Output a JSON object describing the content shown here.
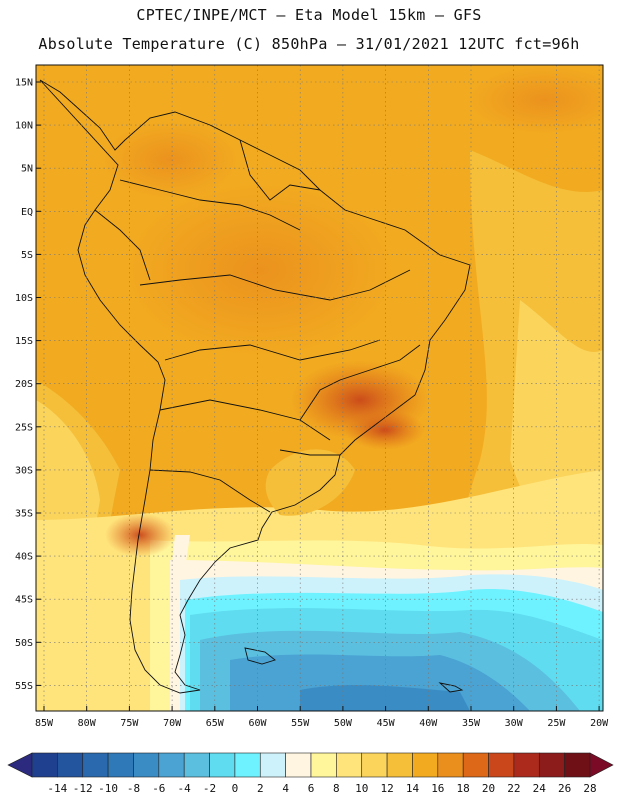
{
  "header": {
    "line1": "CPTEC/INPE/MCT –  Eta Model 15km – GFS",
    "line2": "Absolute Temperature (C) 850hPa – 31/01/2021 12UTC fct=96h"
  },
  "map": {
    "lat_labels": [
      "15N",
      "10N",
      "5N",
      "EQ",
      "5S",
      "10S",
      "15S",
      "20S",
      "25S",
      "30S",
      "35S",
      "40S",
      "45S",
      "50S",
      "55S"
    ],
    "lon_labels": [
      "85W",
      "80W",
      "75W",
      "70W",
      "65W",
      "60W",
      "55W",
      "50W",
      "45W",
      "40W",
      "35W",
      "30W",
      "25W",
      "20W"
    ]
  },
  "colorbar": {
    "labels": [
      "-14",
      "-12",
      "-10",
      "-8",
      "-6",
      "-4",
      "-2",
      "0",
      "2",
      "4",
      "6",
      "8",
      "10",
      "12",
      "14",
      "16",
      "18",
      "20",
      "22",
      "24",
      "26",
      "28"
    ],
    "colors": [
      "#1f3f8f",
      "#23549e",
      "#2a69ad",
      "#3079b8",
      "#3a8cc5",
      "#4aa3d2",
      "#5bbfe0",
      "#5fdcef",
      "#6ff2ff",
      "#cdf2fb",
      "#fff5e0",
      "#fff59a",
      "#ffe47c",
      "#fbd45c",
      "#f5bf3a",
      "#f2ab20",
      "#ea8f1d",
      "#dd6818",
      "#c9471a",
      "#ac2a1c",
      "#8c1b1b",
      "#6f1016"
    ],
    "ends": {
      "left": "#2b2a7e",
      "right": "#7a0a26"
    }
  }
}
